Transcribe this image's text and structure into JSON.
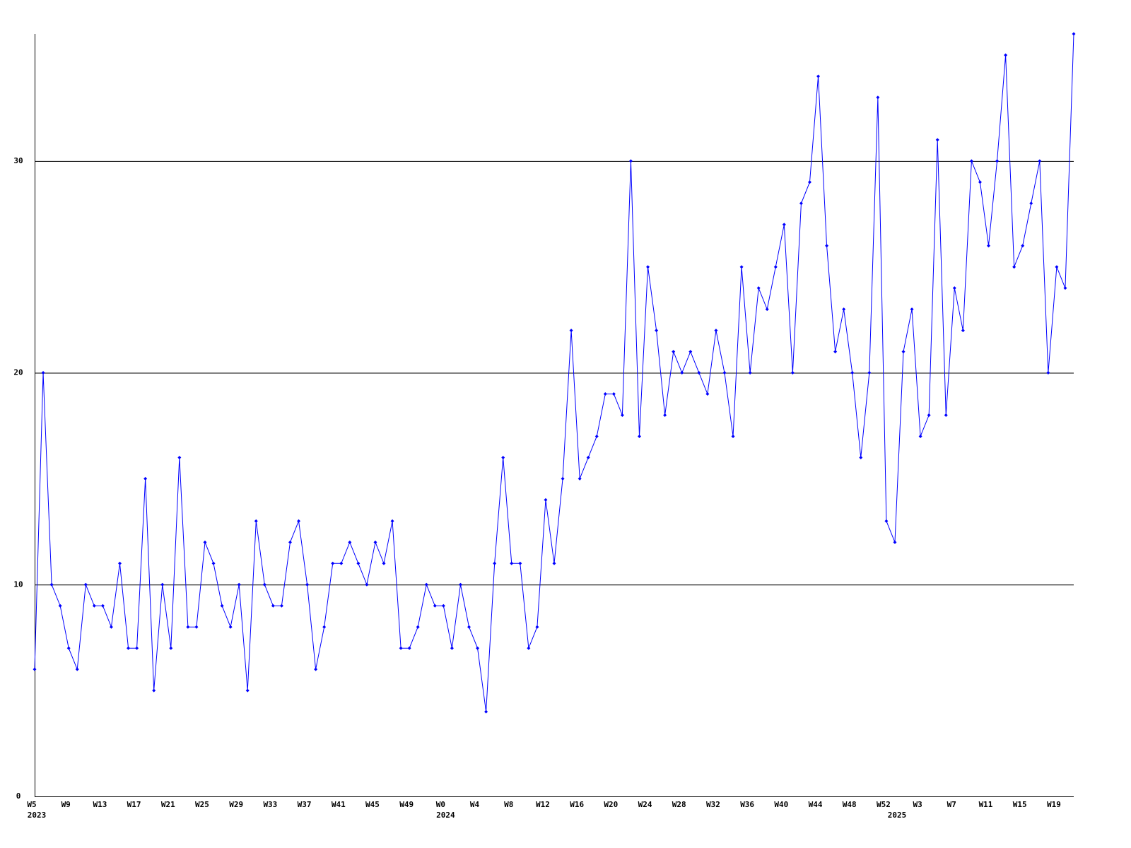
{
  "chart_data": {
    "type": "line",
    "categories": [
      "W5",
      null,
      null,
      null,
      "W9",
      null,
      null,
      null,
      "W13",
      null,
      null,
      null,
      "W17",
      null,
      null,
      null,
      "W21",
      null,
      null,
      null,
      "W25",
      null,
      null,
      null,
      "W29",
      null,
      null,
      null,
      "W33",
      null,
      null,
      null,
      "W37",
      null,
      null,
      null,
      "W41",
      null,
      null,
      null,
      "W45",
      null,
      null,
      null,
      "W49",
      null,
      null,
      null,
      "W0",
      null,
      null,
      null,
      "W4",
      null,
      null,
      null,
      "W8",
      null,
      null,
      null,
      "W12",
      null,
      null,
      null,
      "W16",
      null,
      null,
      null,
      "W20",
      null,
      null,
      null,
      "W24",
      null,
      null,
      null,
      "W28",
      null,
      null,
      null,
      "W32",
      null,
      null,
      null,
      "W36",
      null,
      null,
      null,
      "W40",
      null,
      null,
      null,
      "W44",
      null,
      null,
      null,
      "W48",
      null,
      null,
      null,
      "W52",
      null,
      null,
      null,
      "W3",
      null,
      null,
      null,
      "W7",
      null,
      null,
      null,
      "W11",
      null,
      null,
      null,
      "W15",
      null,
      null,
      null,
      "W19",
      null,
      null
    ],
    "years": [
      "2023",
      null,
      null,
      null,
      null,
      null,
      null,
      null,
      null,
      null,
      null,
      null,
      null,
      null,
      null,
      null,
      null,
      null,
      null,
      null,
      null,
      null,
      null,
      null,
      null,
      null,
      null,
      null,
      null,
      null,
      null,
      null,
      null,
      null,
      null,
      null,
      null,
      null,
      null,
      null,
      null,
      null,
      null,
      null,
      null,
      null,
      null,
      null,
      "2024",
      null,
      null,
      null,
      null,
      null,
      null,
      null,
      null,
      null,
      null,
      null,
      null,
      null,
      null,
      null,
      null,
      null,
      null,
      null,
      null,
      null,
      null,
      null,
      null,
      null,
      null,
      null,
      null,
      null,
      null,
      null,
      null,
      null,
      null,
      null,
      null,
      null,
      null,
      null,
      null,
      null,
      null,
      null,
      null,
      null,
      null,
      null,
      null,
      null,
      null,
      null,
      null,
      "2025",
      null,
      null,
      null,
      null,
      null,
      null,
      null,
      null,
      null,
      null,
      null,
      null,
      null,
      null,
      null,
      null,
      null,
      null,
      null,
      null
    ],
    "values": [
      6,
      20,
      10,
      9,
      7,
      6,
      10,
      9,
      9,
      8,
      11,
      7,
      7,
      15,
      5,
      10,
      7,
      16,
      8,
      8,
      12,
      11,
      9,
      8,
      10,
      5,
      13,
      10,
      9,
      9,
      12,
      13,
      10,
      6,
      8,
      11,
      11,
      12,
      11,
      10,
      12,
      11,
      13,
      7,
      7,
      8,
      10,
      9,
      9,
      7,
      10,
      8,
      7,
      4,
      11,
      16,
      11,
      11,
      7,
      8,
      14,
      11,
      15,
      22,
      15,
      16,
      17,
      19,
      19,
      18,
      30,
      17,
      25,
      22,
      18,
      21,
      20,
      21,
      20,
      19,
      22,
      20,
      17,
      25,
      20,
      24,
      23,
      25,
      27,
      20,
      28,
      29,
      34,
      26,
      21,
      23,
      20,
      16,
      20,
      33,
      13,
      12,
      21,
      23,
      17,
      18,
      31,
      18,
      24,
      22,
      30,
      29,
      26,
      30,
      35,
      25,
      26,
      28,
      30,
      20,
      25,
      24,
      36
    ],
    "color": "#0000ff",
    "ylim": [
      0,
      36
    ],
    "yticks": [
      0,
      10,
      20,
      30
    ],
    "grid": true
  }
}
